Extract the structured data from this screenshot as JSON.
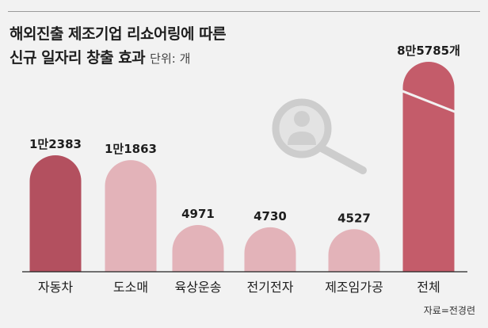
{
  "header": {
    "title_line1": "해외진출 제조기업 리쇼어링에 따른",
    "title_line2": "신규 일자리 창출 효과",
    "unit": "단위: 개"
  },
  "source": "자료=전경련",
  "icon": "magnifier-person-icon",
  "colors": {
    "highlight": "#c45c6a",
    "automotive": "#b3505f",
    "regular": "#e3b3b9",
    "background": "#f2f2f2"
  },
  "chart_data": {
    "type": "bar",
    "categories": [
      "자동차",
      "도소매",
      "육상운송",
      "전기전자",
      "제조임가공",
      "전체"
    ],
    "values": [
      12383,
      11863,
      4971,
      4730,
      4527,
      85785
    ],
    "value_labels": [
      "1만2383",
      "1만1863",
      "4971",
      "4730",
      "4527",
      "8만5785개"
    ],
    "axis_break": true,
    "grid": false,
    "legend": "none"
  }
}
